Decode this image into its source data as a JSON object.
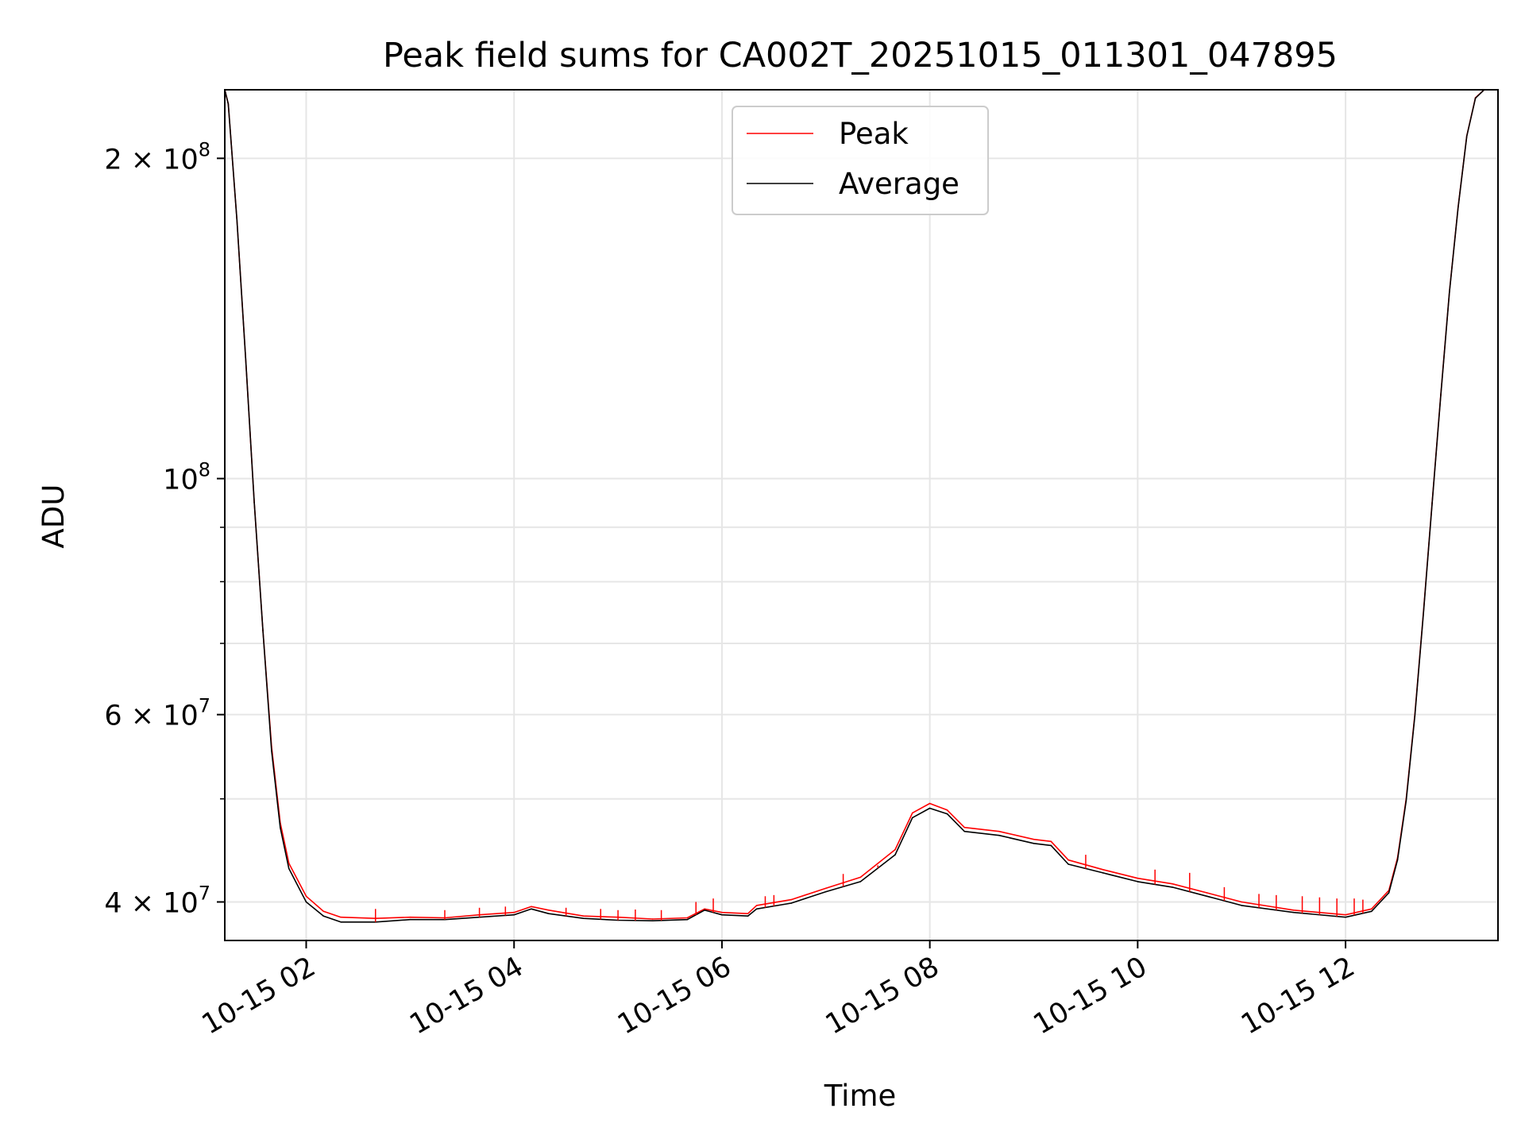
{
  "chart_data": {
    "type": "line",
    "title": "Peak field sums for CA002T_20251015_011301_047895",
    "xlabel": "Time",
    "ylabel": "ADU",
    "yscale": "log",
    "ylim": [
      36800000,
      232000000
    ],
    "xlim": [
      "10-15 01:13",
      "10-15 13:28"
    ],
    "grid": true,
    "legend_position": "top-center",
    "x_ticks": [
      "10-15 02",
      "10-15 04",
      "10-15 06",
      "10-15 08",
      "10-15 10",
      "10-15 12"
    ],
    "y_ticks_major": [
      {
        "label": "2×10^8",
        "value": 200000000
      },
      {
        "label": "10^8",
        "value": 100000000
      },
      {
        "label": "6×10^7",
        "value": 60000000
      },
      {
        "label": "4×10^7",
        "value": 40000000
      }
    ],
    "y_ticks_minor": [
      30000000,
      50000000,
      70000000,
      80000000,
      90000000
    ],
    "series": [
      {
        "name": "Peak",
        "color": "#ff0000",
        "points": [
          [
            "10-15 01:13",
            232000000
          ],
          [
            "10-15 01:15",
            225000000
          ],
          [
            "10-15 01:20",
            175000000
          ],
          [
            "10-15 01:25",
            130000000
          ],
          [
            "10-15 01:30",
            95000000
          ],
          [
            "10-15 01:35",
            72000000
          ],
          [
            "10-15 01:40",
            56000000
          ],
          [
            "10-15 01:45",
            47500000
          ],
          [
            "10-15 01:50",
            43500000
          ],
          [
            "10-15 02:00",
            40500000
          ],
          [
            "10-15 02:10",
            39200000
          ],
          [
            "10-15 02:20",
            38700000
          ],
          [
            "10-15 02:40",
            38600000
          ],
          [
            "10-15 03:00",
            38700000
          ],
          [
            "10-15 03:20",
            38650000
          ],
          [
            "10-15 03:40",
            38900000
          ],
          [
            "10-15 04:00",
            39100000
          ],
          [
            "10-15 04:10",
            39600000
          ],
          [
            "10-15 04:20",
            39300000
          ],
          [
            "10-15 04:40",
            38800000
          ],
          [
            "10-15 05:00",
            38700000
          ],
          [
            "10-15 05:20",
            38550000
          ],
          [
            "10-15 05:40",
            38650000
          ],
          [
            "10-15 05:50",
            39400000
          ],
          [
            "10-15 06:00",
            39100000
          ],
          [
            "10-15 06:15",
            39000000
          ],
          [
            "10-15 06:20",
            39700000
          ],
          [
            "10-15 06:40",
            40200000
          ],
          [
            "10-15 07:00",
            41200000
          ],
          [
            "10-15 07:20",
            42200000
          ],
          [
            "10-15 07:40",
            44800000
          ],
          [
            "10-15 07:50",
            48500000
          ],
          [
            "10-15 08:00",
            49500000
          ],
          [
            "10-15 08:10",
            48800000
          ],
          [
            "10-15 08:20",
            47000000
          ],
          [
            "10-15 08:40",
            46600000
          ],
          [
            "10-15 09:00",
            45800000
          ],
          [
            "10-15 09:10",
            45600000
          ],
          [
            "10-15 09:20",
            43800000
          ],
          [
            "10-15 09:40",
            42900000
          ],
          [
            "10-15 10:00",
            42100000
          ],
          [
            "10-15 10:20",
            41600000
          ],
          [
            "10-15 10:40",
            40800000
          ],
          [
            "10-15 11:00",
            40000000
          ],
          [
            "10-15 11:30",
            39300000
          ],
          [
            "10-15 12:00",
            38900000
          ],
          [
            "10-15 12:15",
            39400000
          ],
          [
            "10-15 12:25",
            41000000
          ],
          [
            "10-15 12:30",
            44000000
          ],
          [
            "10-15 12:35",
            50000000
          ],
          [
            "10-15 12:40",
            60000000
          ],
          [
            "10-15 12:45",
            75000000
          ],
          [
            "10-15 12:50",
            95000000
          ],
          [
            "10-15 12:55",
            120000000
          ],
          [
            "10-15 13:00",
            150000000
          ],
          [
            "10-15 13:05",
            180000000
          ],
          [
            "10-15 13:10",
            210000000
          ],
          [
            "10-15 13:15",
            228000000
          ],
          [
            "10-15 13:20",
            232000000
          ],
          [
            "10-15 13:28",
            232000000
          ]
        ]
      },
      {
        "name": "Average",
        "color": "#000000",
        "points": [
          [
            "10-15 01:13",
            232000000
          ],
          [
            "10-15 01:15",
            225000000
          ],
          [
            "10-15 01:20",
            175000000
          ],
          [
            "10-15 01:25",
            130000000
          ],
          [
            "10-15 01:30",
            95000000
          ],
          [
            "10-15 01:35",
            72000000
          ],
          [
            "10-15 01:40",
            55500000
          ],
          [
            "10-15 01:45",
            47000000
          ],
          [
            "10-15 01:50",
            43000000
          ],
          [
            "10-15 02:00",
            40000000
          ],
          [
            "10-15 02:10",
            38800000
          ],
          [
            "10-15 02:20",
            38300000
          ],
          [
            "10-15 02:40",
            38300000
          ],
          [
            "10-15 03:00",
            38500000
          ],
          [
            "10-15 03:20",
            38500000
          ],
          [
            "10-15 03:40",
            38700000
          ],
          [
            "10-15 04:00",
            38900000
          ],
          [
            "10-15 04:10",
            39400000
          ],
          [
            "10-15 04:20",
            39000000
          ],
          [
            "10-15 04:40",
            38600000
          ],
          [
            "10-15 05:00",
            38450000
          ],
          [
            "10-15 05:20",
            38400000
          ],
          [
            "10-15 05:40",
            38500000
          ],
          [
            "10-15 05:50",
            39300000
          ],
          [
            "10-15 06:00",
            38900000
          ],
          [
            "10-15 06:15",
            38800000
          ],
          [
            "10-15 06:20",
            39400000
          ],
          [
            "10-15 06:40",
            39900000
          ],
          [
            "10-15 07:00",
            40900000
          ],
          [
            "10-15 07:20",
            41800000
          ],
          [
            "10-15 07:40",
            44300000
          ],
          [
            "10-15 07:50",
            48000000
          ],
          [
            "10-15 08:00",
            49000000
          ],
          [
            "10-15 08:10",
            48400000
          ],
          [
            "10-15 08:20",
            46600000
          ],
          [
            "10-15 08:40",
            46200000
          ],
          [
            "10-15 09:00",
            45400000
          ],
          [
            "10-15 09:10",
            45200000
          ],
          [
            "10-15 09:20",
            43400000
          ],
          [
            "10-15 09:40",
            42600000
          ],
          [
            "10-15 10:00",
            41800000
          ],
          [
            "10-15 10:20",
            41300000
          ],
          [
            "10-15 10:40",
            40500000
          ],
          [
            "10-15 11:00",
            39700000
          ],
          [
            "10-15 11:30",
            39100000
          ],
          [
            "10-15 12:00",
            38700000
          ],
          [
            "10-15 12:15",
            39200000
          ],
          [
            "10-15 12:25",
            40800000
          ],
          [
            "10-15 12:30",
            43800000
          ],
          [
            "10-15 12:35",
            49800000
          ],
          [
            "10-15 12:40",
            59800000
          ],
          [
            "10-15 12:45",
            74800000
          ],
          [
            "10-15 12:50",
            94800000
          ],
          [
            "10-15 12:55",
            119800000
          ],
          [
            "10-15 13:00",
            149800000
          ],
          [
            "10-15 13:05",
            179800000
          ],
          [
            "10-15 13:10",
            209800000
          ],
          [
            "10-15 13:15",
            227800000
          ],
          [
            "10-15 13:20",
            232000000
          ],
          [
            "10-15 13:28",
            232000000
          ]
        ]
      }
    ],
    "peak_spikes": [
      [
        "10-15 02:40",
        39400000
      ],
      [
        "10-15 03:20",
        39300000
      ],
      [
        "10-15 03:40",
        39500000
      ],
      [
        "10-15 03:55",
        39600000
      ],
      [
        "10-15 04:30",
        39500000
      ],
      [
        "10-15 04:50",
        39400000
      ],
      [
        "10-15 05:00",
        39300000
      ],
      [
        "10-15 05:10",
        39350000
      ],
      [
        "10-15 05:25",
        39300000
      ],
      [
        "10-15 05:45",
        40000000
      ],
      [
        "10-15 05:55",
        40300000
      ],
      [
        "10-15 06:25",
        40500000
      ],
      [
        "10-15 06:30",
        40600000
      ],
      [
        "10-15 07:10",
        42500000
      ],
      [
        "10-15 07:30",
        43300000
      ],
      [
        "10-15 09:30",
        44300000
      ],
      [
        "10-15 10:10",
        42900000
      ],
      [
        "10-15 10:30",
        42600000
      ],
      [
        "10-15 10:50",
        41300000
      ],
      [
        "10-15 11:10",
        40700000
      ],
      [
        "10-15 11:20",
        40600000
      ],
      [
        "10-15 11:35",
        40500000
      ],
      [
        "10-15 11:45",
        40400000
      ],
      [
        "10-15 11:55",
        40300000
      ],
      [
        "10-15 12:05",
        40300000
      ],
      [
        "10-15 12:10",
        40200000
      ]
    ]
  }
}
